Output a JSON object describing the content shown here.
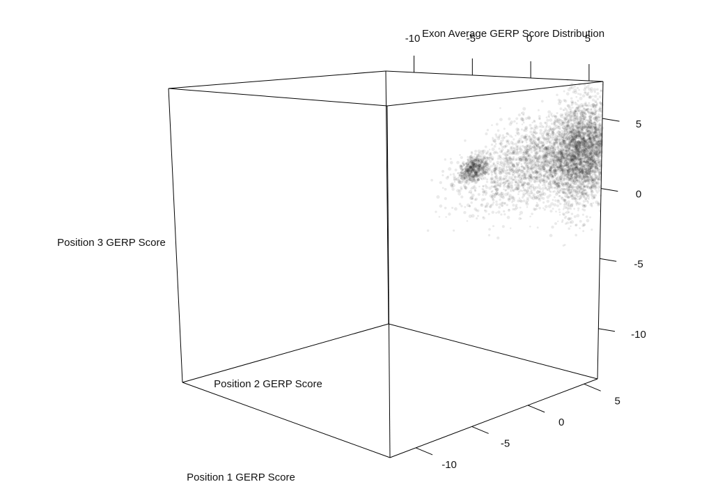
{
  "chart_data": {
    "type": "scatter3d",
    "title": "Exon Average GERP Score Distribution",
    "xlabel": "Position 1 GERP Score",
    "ylabel": "Position 2 GERP Score",
    "zlabel": "Position 3 GERP Score",
    "xlim": [
      -12.3,
      6.2
    ],
    "ylim": [
      -12.3,
      6.2
    ],
    "zlim": [
      -12.3,
      6.2
    ],
    "x_ticks": [
      "-10",
      "-5",
      "0",
      "5"
    ],
    "y_ticks": [
      "-10",
      "-5",
      "0",
      "5"
    ],
    "z_ticks": [
      "-10",
      "-5",
      "0",
      "5"
    ],
    "grid": false,
    "point_color": "#1a1a1a",
    "density_clusters": [
      {
        "x": 4.6,
        "z": 1.6,
        "spread_x": 1.4,
        "spread_z": 1.6,
        "weight": 0.55
      },
      {
        "x": -4.8,
        "z": -0.2,
        "spread_x": 0.6,
        "spread_z": 0.4,
        "weight": 0.1
      },
      {
        "x": 0.5,
        "z": 0.7,
        "spread_x": 3.0,
        "spread_z": 1.4,
        "weight": 0.35
      }
    ]
  }
}
